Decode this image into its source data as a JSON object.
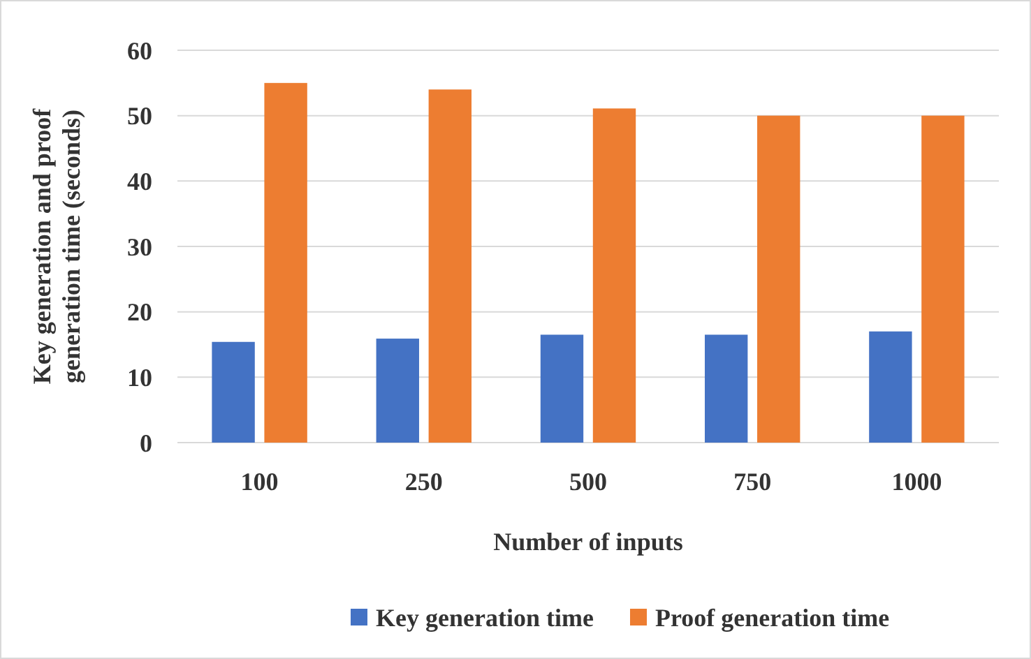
{
  "chart_data": {
    "type": "bar",
    "xlabel": "Number of inputs",
    "ylabel": "Key generation and proof generation time (seconds)",
    "categories": [
      "100",
      "250",
      "500",
      "750",
      "1000"
    ],
    "series": [
      {
        "name": "Key generation time",
        "color": "#4472c4",
        "values": [
          15.4,
          15.9,
          16.5,
          16.5,
          17
        ]
      },
      {
        "name": "Proof generation time",
        "color": "#ed7d31",
        "values": [
          55,
          54,
          51.1,
          50,
          50
        ]
      }
    ],
    "ylim": [
      0,
      60
    ],
    "yticks": [
      0,
      10,
      20,
      30,
      40,
      50,
      60
    ],
    "grid": "y",
    "legend": "bottom"
  }
}
